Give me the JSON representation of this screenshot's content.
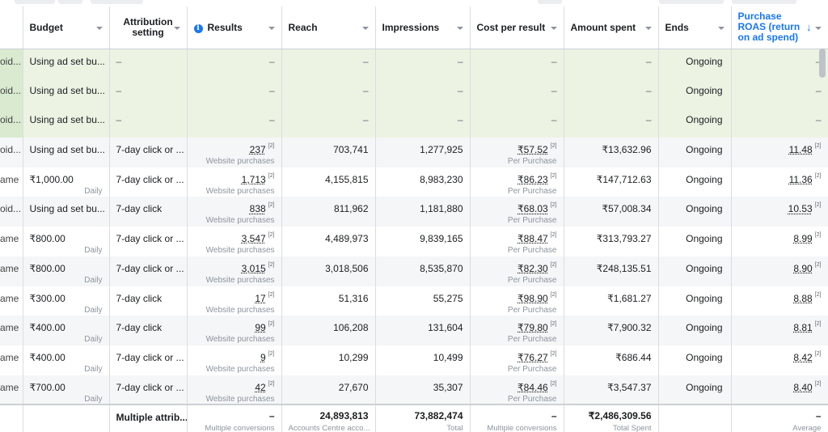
{
  "columns": [
    {
      "key": "name",
      "label": ""
    },
    {
      "key": "budget",
      "label": "Budget"
    },
    {
      "key": "attribution",
      "label": "Attribution setting"
    },
    {
      "key": "results",
      "label": "Results"
    },
    {
      "key": "reach",
      "label": "Reach"
    },
    {
      "key": "impressions",
      "label": "Impressions"
    },
    {
      "key": "cpr",
      "label": "Cost per result"
    },
    {
      "key": "spent",
      "label": "Amount spent"
    },
    {
      "key": "ends",
      "label": "Ends"
    },
    {
      "key": "roas",
      "label": "Purchase ROAS (return on ad spend)"
    }
  ],
  "rows": [
    {
      "name": "oid...",
      "budget": "Using ad set bu...",
      "budget_sub": "",
      "attribution": "–",
      "results": "–",
      "results_sub": "",
      "reach": "–",
      "impressions": "–",
      "cpr": "–",
      "cpr_sub": "",
      "spent": "–",
      "ends": "Ongoing",
      "roas": "–",
      "green": true
    },
    {
      "name": "oid...",
      "budget": "Using ad set bu...",
      "budget_sub": "",
      "attribution": "–",
      "results": "–",
      "results_sub": "",
      "reach": "–",
      "impressions": "–",
      "cpr": "–",
      "cpr_sub": "",
      "spent": "–",
      "ends": "Ongoing",
      "roas": "–",
      "green": true
    },
    {
      "name": "oid...",
      "budget": "Using ad set bu...",
      "budget_sub": "",
      "attribution": "–",
      "results": "–",
      "results_sub": "",
      "reach": "–",
      "impressions": "–",
      "cpr": "–",
      "cpr_sub": "",
      "spent": "–",
      "ends": "Ongoing",
      "roas": "–",
      "green": true
    },
    {
      "name": "oid...",
      "budget": "Using ad set bu...",
      "budget_sub": "",
      "attribution": "7-day click or ...",
      "results": "237",
      "results_sub": "Website purchases",
      "reach": "703,741",
      "impressions": "1,277,925",
      "cpr": "₹57.52",
      "cpr_sub": "Per Purchase",
      "spent": "₹13,632.96",
      "ends": "Ongoing",
      "roas": "11.48",
      "green": false
    },
    {
      "name": "ame",
      "budget": "₹1,000.00",
      "budget_sub": "Daily",
      "attribution": "7-day click or ...",
      "results": "1,713",
      "results_sub": "Website purchases",
      "reach": "4,155,815",
      "impressions": "8,983,230",
      "cpr": "₹86.23",
      "cpr_sub": "Per Purchase",
      "spent": "₹147,712.63",
      "ends": "Ongoing",
      "roas": "11.36",
      "green": false
    },
    {
      "name": "oid...",
      "budget": "Using ad set bu...",
      "budget_sub": "",
      "attribution": "7-day click",
      "results": "838",
      "results_sub": "Website purchases",
      "reach": "811,962",
      "impressions": "1,181,880",
      "cpr": "₹68.03",
      "cpr_sub": "Per Purchase",
      "spent": "₹57,008.34",
      "ends": "Ongoing",
      "roas": "10.53",
      "green": false
    },
    {
      "name": "ame",
      "budget": "₹800.00",
      "budget_sub": "Daily",
      "attribution": "7-day click or ...",
      "results": "3,547",
      "results_sub": "Website purchases",
      "reach": "4,489,973",
      "impressions": "9,839,165",
      "cpr": "₹88.47",
      "cpr_sub": "Per Purchase",
      "spent": "₹313,793.27",
      "ends": "Ongoing",
      "roas": "8.99",
      "green": false
    },
    {
      "name": "ame",
      "budget": "₹800.00",
      "budget_sub": "Daily",
      "attribution": "7-day click or ...",
      "results": "3,015",
      "results_sub": "Website purchases",
      "reach": "3,018,506",
      "impressions": "8,535,870",
      "cpr": "₹82.30",
      "cpr_sub": "Per Purchase",
      "spent": "₹248,135.51",
      "ends": "Ongoing",
      "roas": "8.90",
      "green": false
    },
    {
      "name": "ame",
      "budget": "₹300.00",
      "budget_sub": "Daily",
      "attribution": "7-day click",
      "results": "17",
      "results_sub": "Website purchases",
      "reach": "51,316",
      "impressions": "55,275",
      "cpr": "₹98.90",
      "cpr_sub": "Per Purchase",
      "spent": "₹1,681.27",
      "ends": "Ongoing",
      "roas": "8.88",
      "green": false
    },
    {
      "name": "ame",
      "budget": "₹400.00",
      "budget_sub": "Daily",
      "attribution": "7-day click",
      "results": "99",
      "results_sub": "Website purchases",
      "reach": "106,208",
      "impressions": "131,604",
      "cpr": "₹79.80",
      "cpr_sub": "Per Purchase",
      "spent": "₹7,900.32",
      "ends": "Ongoing",
      "roas": "8.81",
      "green": false
    },
    {
      "name": "ame",
      "budget": "₹400.00",
      "budget_sub": "Daily",
      "attribution": "7-day click or ...",
      "results": "9",
      "results_sub": "Website purchases",
      "reach": "10,299",
      "impressions": "10,499",
      "cpr": "₹76.27",
      "cpr_sub": "Per Purchase",
      "spent": "₹686.44",
      "ends": "Ongoing",
      "roas": "8.42",
      "green": false
    },
    {
      "name": "ame",
      "budget": "₹700.00",
      "budget_sub": "Daily",
      "attribution": "7-day click or ...",
      "results": "42",
      "results_sub": "Website purchases",
      "reach": "27,670",
      "impressions": "35,307",
      "cpr": "₹84.46",
      "cpr_sub": "Per Purchase",
      "spent": "₹3,547.37",
      "ends": "Ongoing",
      "roas": "8.40",
      "green": false
    }
  ],
  "sup_mark": "[2]",
  "totals": {
    "attribution": "Multiple attrib...",
    "results": "–",
    "results_sub": "Multiple conversions",
    "reach": "24,893,813",
    "reach_sub": "Accounts Centre acco...",
    "impressions": "73,882,474",
    "impressions_sub": "Total",
    "cpr": "–",
    "cpr_sub": "Multiple conversions",
    "spent": "₹2,486,309.56",
    "spent_sub": "Total Spent",
    "ends": "",
    "roas": "–",
    "roas_sub": "Average"
  },
  "colors": {
    "accent": "#1877f2",
    "green_row": "#ecf3e3",
    "stripe": "#f5f6f7"
  },
  "icons": {
    "info": "info-icon",
    "sort": "sort-descending-icon",
    "dropdown": "chevron-down-icon"
  }
}
